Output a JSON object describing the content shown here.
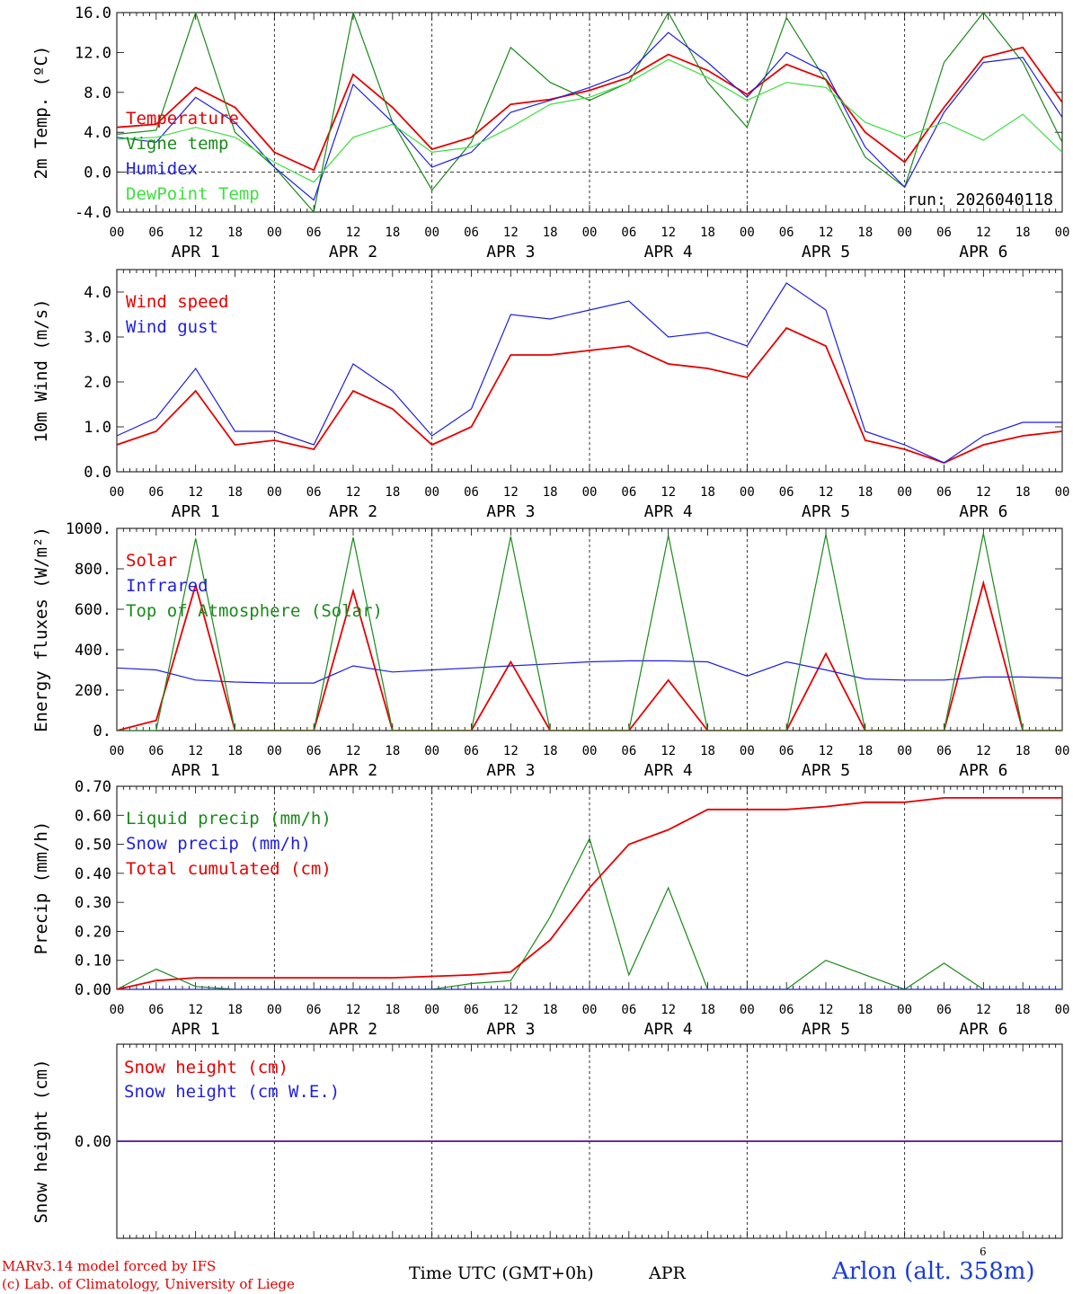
{
  "colors": {
    "red": "#e60000",
    "green": "#1a8a1a",
    "blue": "#1f1fe0",
    "light_green": "#3ee03e",
    "axis": "#000000",
    "grid": "#000000"
  },
  "footer": {
    "credit_line1": "MARv3.14 model forced by IFS",
    "credit_line2": "(c) Lab. of Climatology, University of Liege",
    "xlabel": "Time UTC (GMT+0h)",
    "month": "APR",
    "day_marker": "6",
    "station": "Arlon (alt. 358m)"
  },
  "chart_data": [
    {
      "type": "line",
      "ylabel": "2m Temp. (ºC)",
      "ylim": [
        -4,
        16
      ],
      "yticks": [
        -4,
        0,
        4,
        8,
        12,
        16
      ],
      "ytick_labels": [
        "-4.0",
        "0.0",
        "4.0",
        "8.0",
        "12.0",
        "16.0"
      ],
      "zero_line": true,
      "annotation": "run: 2026040118",
      "x_hours": [
        0,
        6,
        12,
        18,
        24,
        30,
        36,
        42,
        48,
        54,
        60,
        66,
        72,
        78,
        84,
        90,
        96,
        102,
        108,
        114,
        120,
        126,
        132,
        138,
        144
      ],
      "series": [
        {
          "name": "Temperature",
          "color": "red",
          "values": [
            4.5,
            4.8,
            8.5,
            6.5,
            2.0,
            0.2,
            9.8,
            6.5,
            2.3,
            3.5,
            6.8,
            7.3,
            8.2,
            9.5,
            11.8,
            10.2,
            7.8,
            10.8,
            9.3,
            4.0,
            1.0,
            6.5,
            11.5,
            12.5,
            7.0
          ]
        },
        {
          "name": "Vigne temp",
          "color": "green",
          "values": [
            3.8,
            4.2,
            16.0,
            4.0,
            0.5,
            -4.0,
            16.0,
            5.0,
            -1.8,
            3.0,
            12.5,
            9.0,
            7.2,
            9.0,
            16.0,
            9.0,
            4.5,
            15.5,
            9.2,
            1.5,
            -1.5,
            11.0,
            16.0,
            11.0,
            3.0
          ]
        },
        {
          "name": "Humidex",
          "color": "blue",
          "values": [
            3.5,
            3.0,
            7.5,
            5.0,
            0.5,
            -2.8,
            8.8,
            5.0,
            0.5,
            2.0,
            6.0,
            7.2,
            8.5,
            10.0,
            14.0,
            11.0,
            7.5,
            12.0,
            10.0,
            2.5,
            -1.5,
            6.0,
            11.0,
            11.5,
            5.5
          ]
        },
        {
          "name": "DewPoint Temp",
          "color": "light_green",
          "values": [
            3.3,
            3.5,
            4.5,
            3.5,
            1.0,
            -1.0,
            3.5,
            4.8,
            2.0,
            2.5,
            4.5,
            6.8,
            7.5,
            9.0,
            11.3,
            9.5,
            7.2,
            9.0,
            8.5,
            5.0,
            3.5,
            5.0,
            3.2,
            5.8,
            2.0
          ]
        }
      ]
    },
    {
      "type": "line",
      "ylabel": "10m Wind (m/s)",
      "ylim": [
        0,
        4.5
      ],
      "yticks": [
        0,
        1,
        2,
        3,
        4
      ],
      "ytick_labels": [
        "0.0",
        "1.0",
        "2.0",
        "3.0",
        "4.0"
      ],
      "x_hours": [
        0,
        6,
        12,
        18,
        24,
        30,
        36,
        42,
        48,
        54,
        60,
        66,
        72,
        78,
        84,
        90,
        96,
        102,
        108,
        114,
        120,
        126,
        132,
        138,
        144
      ],
      "series": [
        {
          "name": "Wind speed",
          "color": "red",
          "values": [
            0.6,
            0.9,
            1.8,
            0.6,
            0.7,
            0.5,
            1.8,
            1.4,
            0.6,
            1.0,
            2.6,
            2.6,
            2.7,
            2.8,
            2.4,
            2.3,
            2.1,
            3.2,
            2.8,
            0.7,
            0.5,
            0.2,
            0.6,
            0.8,
            0.9
          ]
        },
        {
          "name": "Wind gust",
          "color": "blue",
          "values": [
            0.8,
            1.2,
            2.3,
            0.9,
            0.9,
            0.6,
            2.4,
            1.8,
            0.8,
            1.4,
            3.5,
            3.4,
            3.6,
            3.8,
            3.0,
            3.1,
            2.8,
            4.2,
            3.6,
            0.9,
            0.6,
            0.2,
            0.8,
            1.1,
            1.1
          ]
        }
      ]
    },
    {
      "type": "line",
      "ylabel": "Energy fluxes (W/m²)",
      "ylim": [
        0,
        1000
      ],
      "yticks": [
        0,
        200,
        400,
        600,
        800,
        1000
      ],
      "ytick_labels": [
        "0.",
        "200.",
        "400.",
        "600.",
        "800.",
        "1000."
      ],
      "x_hours": [
        0,
        6,
        12,
        18,
        24,
        30,
        36,
        42,
        48,
        54,
        60,
        66,
        72,
        78,
        84,
        90,
        96,
        102,
        108,
        114,
        120,
        126,
        132,
        138,
        144
      ],
      "series": [
        {
          "name": "Solar",
          "color": "red",
          "values": [
            0,
            50,
            720,
            0,
            0,
            0,
            690,
            0,
            0,
            0,
            340,
            0,
            0,
            0,
            250,
            0,
            0,
            0,
            380,
            0,
            0,
            0,
            730,
            0,
            0
          ]
        },
        {
          "name": "Infrared",
          "color": "blue",
          "values": [
            310,
            300,
            250,
            240,
            235,
            235,
            320,
            290,
            300,
            310,
            320,
            330,
            340,
            345,
            345,
            340,
            270,
            340,
            300,
            255,
            250,
            250,
            265,
            265,
            260
          ]
        },
        {
          "name": "Top of Atmosphere (Solar)",
          "color": "green",
          "values": [
            0,
            0,
            950,
            0,
            0,
            0,
            955,
            0,
            0,
            0,
            960,
            0,
            0,
            0,
            965,
            0,
            0,
            0,
            970,
            0,
            0,
            0,
            975,
            0,
            0
          ]
        }
      ]
    },
    {
      "type": "line",
      "ylabel": "Precip (mm/h)",
      "ylim": [
        0,
        0.7
      ],
      "yticks": [
        0,
        0.1,
        0.2,
        0.3,
        0.4,
        0.5,
        0.6,
        0.7
      ],
      "ytick_labels": [
        "0.00",
        "0.10",
        "0.20",
        "0.30",
        "0.40",
        "0.50",
        "0.60",
        "0.70"
      ],
      "x_hours": [
        0,
        6,
        12,
        18,
        24,
        30,
        36,
        42,
        48,
        54,
        60,
        66,
        72,
        78,
        84,
        90,
        96,
        102,
        108,
        114,
        120,
        126,
        132,
        138,
        144
      ],
      "series": [
        {
          "name": "Liquid precip (mm/h)",
          "color": "green",
          "values": [
            0,
            0.07,
            0.01,
            0,
            0,
            0,
            0,
            0,
            0,
            0.02,
            0.03,
            0.25,
            0.52,
            0.05,
            0.35,
            0,
            0,
            0,
            0.1,
            0.05,
            0,
            0.09,
            0,
            0,
            0
          ]
        },
        {
          "name": "Snow precip (mm/h)",
          "color": "blue",
          "values": [
            0,
            0,
            0,
            0,
            0,
            0,
            0,
            0,
            0,
            0,
            0,
            0,
            0,
            0,
            0,
            0,
            0,
            0,
            0,
            0,
            0,
            0,
            0,
            0,
            0
          ]
        },
        {
          "name": "Total cumulated (cm)",
          "color": "red",
          "values": [
            0,
            0.03,
            0.04,
            0.04,
            0.04,
            0.04,
            0.04,
            0.04,
            0.045,
            0.05,
            0.06,
            0.17,
            0.35,
            0.5,
            0.55,
            0.62,
            0.62,
            0.62,
            0.63,
            0.645,
            0.645,
            0.66,
            0.66,
            0.66,
            0.66
          ]
        }
      ]
    },
    {
      "type": "line",
      "ylabel": "Snow height (cm)",
      "ylim": [
        -1,
        1
      ],
      "yticks": [
        0
      ],
      "ytick_labels": [
        "0.00"
      ],
      "x_hours": [
        0,
        144
      ],
      "series": [
        {
          "name": "Snow height (cm)",
          "color": "red",
          "values": [
            0,
            0
          ]
        },
        {
          "name": "Snow height (cm W.E.)",
          "color": "blue",
          "values": [
            0,
            0
          ]
        }
      ]
    }
  ],
  "x_axis": {
    "hour_labels": [
      "00",
      "06",
      "12",
      "18"
    ],
    "end_label": "00",
    "day_labels": [
      "APR  1",
      "APR  2",
      "APR  3",
      "APR  4",
      "APR  5",
      "APR  6"
    ]
  }
}
